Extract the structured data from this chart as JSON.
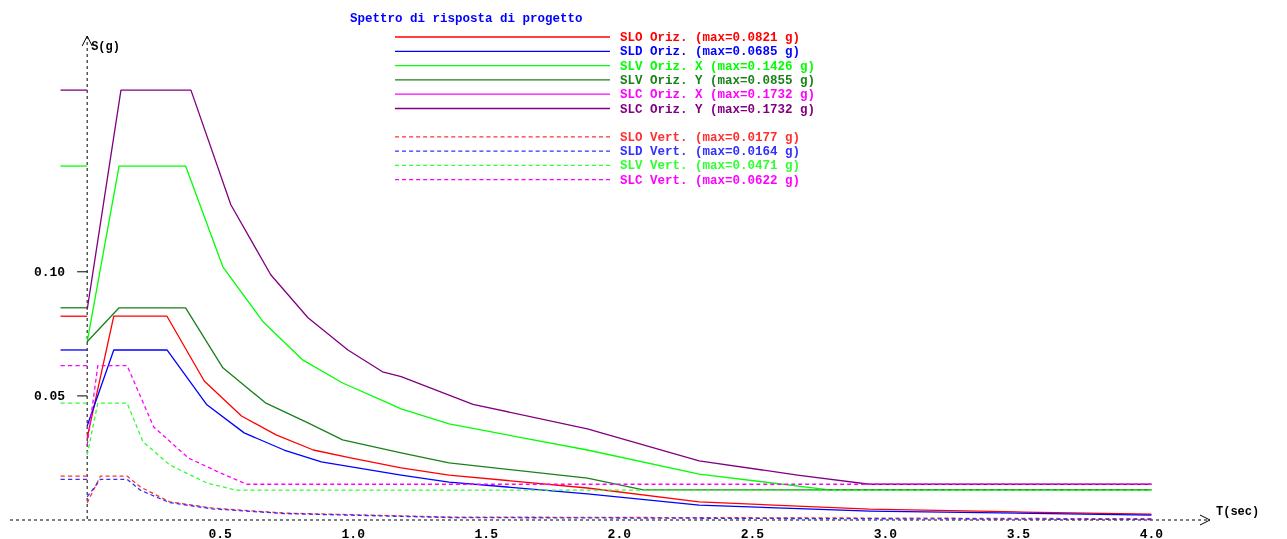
{
  "chart_data": {
    "type": "line",
    "title": "Spettro di risposta di progetto",
    "xlabel": "T(sec)",
    "ylabel": "S(g)",
    "xlim": [
      -0.29,
      4.22
    ],
    "ylim": [
      0,
      0.195
    ],
    "xticks": [
      0.5,
      {
        "value": 1,
        "label": "1.0"
      },
      1.5,
      {
        "value": 2,
        "label": "2.0"
      },
      2.5,
      {
        "value": 3,
        "label": "3.0"
      },
      3.5,
      {
        "value": 4,
        "label": "4.0"
      }
    ],
    "yticks": [
      0.05,
      {
        "value": 0.1,
        "label": "0.10"
      }
    ],
    "legend": "top",
    "line_style": "solid",
    "ref_lines": [
      {
        "axis": "x",
        "value": 0,
        "color": "#000000",
        "line_style": "dashed"
      }
    ],
    "series": [
      {
        "name": "SLO Oriz. (max=0.0821 g)",
        "color": "#ff0000",
        "x": [
          0,
          0.1,
          0.3,
          0.44,
          0.58,
          0.71,
          0.85,
          0.99,
          1.18,
          1.36,
          1.88,
          2.3,
          2.94,
          3.52,
          4.0
        ],
        "values": [
          0.0331,
          0.0821,
          0.0821,
          0.056,
          0.0419,
          0.0343,
          0.0282,
          0.025,
          0.021,
          0.0181,
          0.0129,
          0.0073,
          0.0044,
          0.0032,
          0.0024
        ]
      },
      {
        "name": "SLD Oriz. (max=0.0685 g)",
        "color": "#0000ff",
        "x": [
          0,
          0.1,
          0.3,
          0.45,
          0.59,
          0.74,
          0.88,
          1.18,
          1.36,
          1.88,
          2.3,
          2.94,
          4.0
        ],
        "values": [
          0.0379,
          0.0685,
          0.0685,
          0.0464,
          0.0351,
          0.0282,
          0.0234,
          0.0181,
          0.0153,
          0.0105,
          0.006,
          0.0036,
          0.002
        ]
      },
      {
        "name": "SLV Oriz. X (max=0.1426 g)",
        "color": "#00ff00",
        "x": [
          0,
          0.12,
          0.37,
          0.51,
          0.66,
          0.81,
          0.96,
          1.13,
          1.18,
          1.36,
          1.88,
          2.3,
          2.79,
          4.0
        ],
        "values": [
          0.0718,
          0.1426,
          0.1426,
          0.102,
          0.08,
          0.0645,
          0.0552,
          0.0472,
          0.0448,
          0.0387,
          0.0282,
          0.0185,
          0.0121,
          0.0121
        ]
      },
      {
        "name": "SLV Oriz. Y (max=0.0855 g)",
        "color": "#1a801a",
        "x": [
          0,
          0.12,
          0.37,
          0.51,
          0.67,
          0.83,
          0.96,
          1.18,
          1.36,
          1.88,
          2.09,
          4.0
        ],
        "values": [
          0.0718,
          0.0855,
          0.0855,
          0.0613,
          0.0472,
          0.0391,
          0.0323,
          0.027,
          0.023,
          0.0169,
          0.0121,
          0.0121
        ]
      },
      {
        "name": "SLC Oriz. X (max=0.1732 g)",
        "color": "#ff00ff"
      },
      {
        "name": "SLC Oriz. Y (max=0.1732 g)",
        "color": "#800080",
        "x": [
          0,
          0.127,
          0.39,
          0.54,
          0.69,
          0.83,
          0.98,
          1.11,
          1.18,
          1.45,
          1.88,
          2.3,
          2.67,
          2.94,
          4.0
        ],
        "values": [
          0.0847,
          0.1732,
          0.1732,
          0.127,
          0.0988,
          0.0815,
          0.0685,
          0.0597,
          0.0578,
          0.0466,
          0.0367,
          0.0238,
          0.0181,
          0.0144,
          0.0144
        ]
      },
      {
        "name": "SLO Vert. (max=0.0177 g)",
        "color": "#ff3030",
        "line_style": "dashed",
        "x": [
          0,
          0.05,
          0.15,
          0.2,
          0.31,
          0.47,
          0.74,
          1.36,
          4.0
        ],
        "values": [
          0.0069,
          0.0177,
          0.0177,
          0.0133,
          0.0073,
          0.0048,
          0.0028,
          0.0012,
          0.0005
        ]
      },
      {
        "name": "SLD Vert. (max=0.0164 g)",
        "color": "#3030ff",
        "line_style": "dashed",
        "x": [
          0,
          0.05,
          0.15,
          0.2,
          0.31,
          0.47,
          0.74,
          1.36,
          4.0
        ],
        "values": [
          0.0093,
          0.0164,
          0.0164,
          0.012,
          0.007,
          0.0045,
          0.0026,
          0.001,
          0.0002
        ]
      },
      {
        "name": "SLV Vert. (max=0.0471 g)",
        "color": "#30ff30",
        "line_style": "dashed",
        "x": [
          0,
          0.04,
          0.15,
          0.21,
          0.31,
          0.45,
          0.56,
          4.0
        ],
        "values": [
          0.0262,
          0.0471,
          0.0471,
          0.0315,
          0.0222,
          0.0149,
          0.012,
          0.012
        ]
      },
      {
        "name": "SLC Vert. (max=0.0622 g)",
        "color": "#ff00ff",
        "line_style": "dashed",
        "x": [
          0,
          0.04,
          0.15,
          0.25,
          0.38,
          0.5,
          0.6,
          4.0
        ],
        "values": [
          0.0302,
          0.0622,
          0.0622,
          0.0375,
          0.025,
          0.019,
          0.0144,
          0.0144
        ]
      },
      {
        "color": "#ff0000",
        "x": [
          -0.1,
          0
        ],
        "values": [
          0.0821,
          0.0821
        ]
      },
      {
        "color": "#0000ff",
        "x": [
          -0.1,
          0
        ],
        "values": [
          0.0685,
          0.0685
        ]
      },
      {
        "color": "#00ff00",
        "x": [
          -0.1,
          0
        ],
        "values": [
          0.1426,
          0.1426
        ]
      },
      {
        "color": "#1a801a",
        "x": [
          -0.1,
          0
        ],
        "values": [
          0.0855,
          0.0855
        ]
      },
      {
        "color": "#800080",
        "x": [
          -0.1,
          0
        ],
        "values": [
          0.1732,
          0.1732
        ]
      },
      {
        "color": "#ff3030",
        "line_style": "dashed",
        "x": [
          -0.1,
          0
        ],
        "values": [
          0.0177,
          0.0177
        ]
      },
      {
        "color": "#3030ff",
        "line_style": "dashed",
        "x": [
          -0.1,
          0
        ],
        "values": [
          0.0164,
          0.0164
        ]
      },
      {
        "color": "#30ff30",
        "line_style": "dashed",
        "x": [
          -0.1,
          0
        ],
        "values": [
          0.0471,
          0.0471
        ]
      },
      {
        "color": "#ff00ff",
        "line_style": "dashed",
        "x": [
          -0.1,
          0
        ],
        "values": [
          0.0622,
          0.0622
        ]
      }
    ]
  }
}
